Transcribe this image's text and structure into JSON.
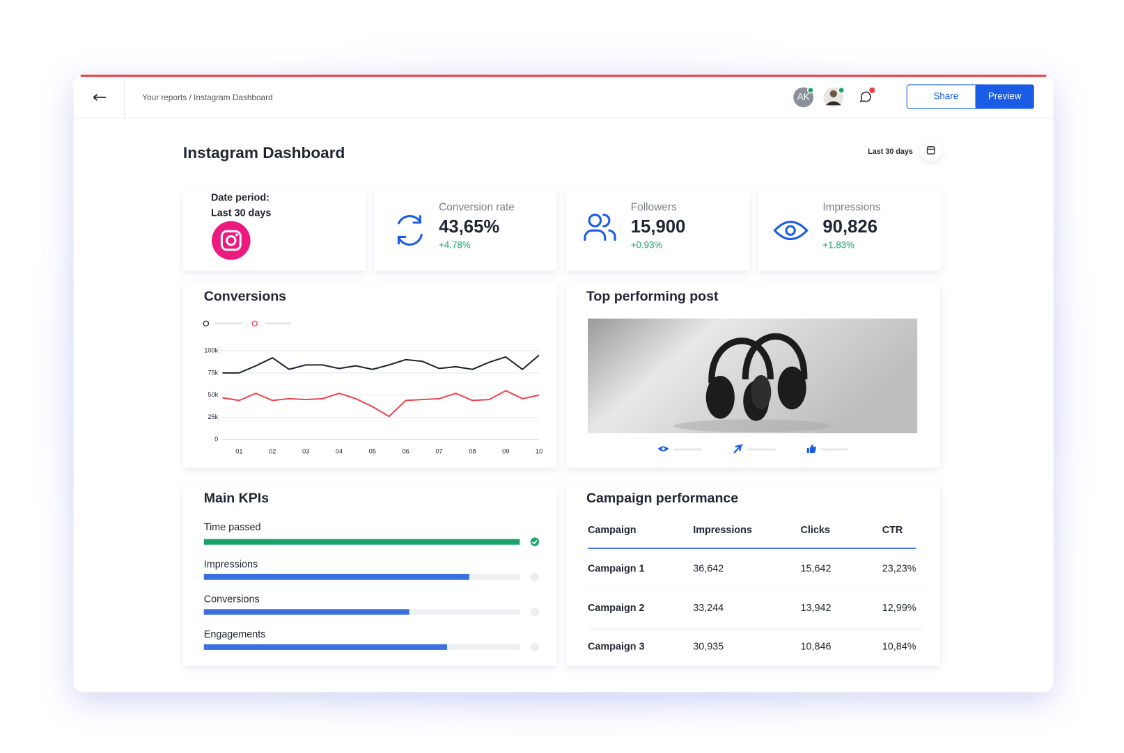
{
  "header": {
    "breadcrumb": "Your reports / Instagram Dashboard",
    "avatar": "AK",
    "share": "Share",
    "preview": "Preview"
  },
  "dashboard": {
    "title": "Instagram Dashboard",
    "range": "Last 30 days"
  },
  "date_card": {
    "label": "Date period:",
    "value": "Last 30 days"
  },
  "kpis": [
    {
      "label": "Conversion rate",
      "value": "43,65%",
      "change": "+4.78%"
    },
    {
      "label": "Followers",
      "value": "15,900",
      "change": "+0.93%"
    },
    {
      "label": "Impressions",
      "value": "90,826",
      "change": "+1.83%"
    }
  ],
  "chart_data": {
    "type": "line",
    "title": "Conversions",
    "categories": [
      null,
      "01",
      null,
      "02",
      null,
      "03",
      null,
      "04",
      null,
      "05",
      null,
      "06",
      null,
      "07",
      null,
      "08",
      null,
      "09",
      null,
      "10"
    ],
    "series": [
      {
        "color": "#1f2533",
        "values": [
          75000,
          75000,
          83000,
          92000,
          79000,
          84000,
          84000,
          80000,
          83000,
          79000,
          84000,
          90000,
          88000,
          80000,
          82000,
          79000,
          87000,
          93000,
          79000,
          95000
        ]
      },
      {
        "color": "#f0434f",
        "values": [
          47000,
          44000,
          52000,
          44000,
          46000,
          45000,
          46000,
          52000,
          46000,
          37000,
          26000,
          44000,
          45000,
          46000,
          52000,
          44000,
          45000,
          55000,
          46000,
          50000
        ]
      }
    ],
    "ylim": [
      0,
      100000
    ],
    "yticks": [
      0,
      {
        "value": 25000,
        "label": "25k"
      },
      {
        "value": 50000,
        "label": "50k"
      },
      {
        "value": 75000,
        "label": "75k"
      },
      {
        "value": 100000,
        "label": "100k"
      }
    ],
    "grid": true
  },
  "top_post": {
    "title": "Top performing post"
  },
  "main_kpis": {
    "title": "Main KPIs",
    "xlim": [
      0,
      100
    ],
    "items": [
      {
        "label": "Time passed",
        "value": 100,
        "color": "#1aa36a"
      },
      {
        "label": "Impressions",
        "value": 84,
        "color": "#3b6fe0"
      },
      {
        "label": "Conversions",
        "value": 65,
        "color": "#3b6fe0"
      },
      {
        "label": "Engagements",
        "value": 77,
        "color": "#3b6fe0"
      }
    ]
  },
  "campaigns": {
    "title": "Campaign performance",
    "columns": [
      "Campaign",
      "Impressions",
      "Clicks",
      "CTR"
    ],
    "rows": [
      [
        "Campaign 1",
        "36,642",
        "15,642",
        "23,23%"
      ],
      [
        "Campaign 2",
        "33,244",
        "13,942",
        "12,99%"
      ],
      [
        "Campaign 3",
        "30,935",
        "10,846",
        "10,84%"
      ]
    ]
  }
}
